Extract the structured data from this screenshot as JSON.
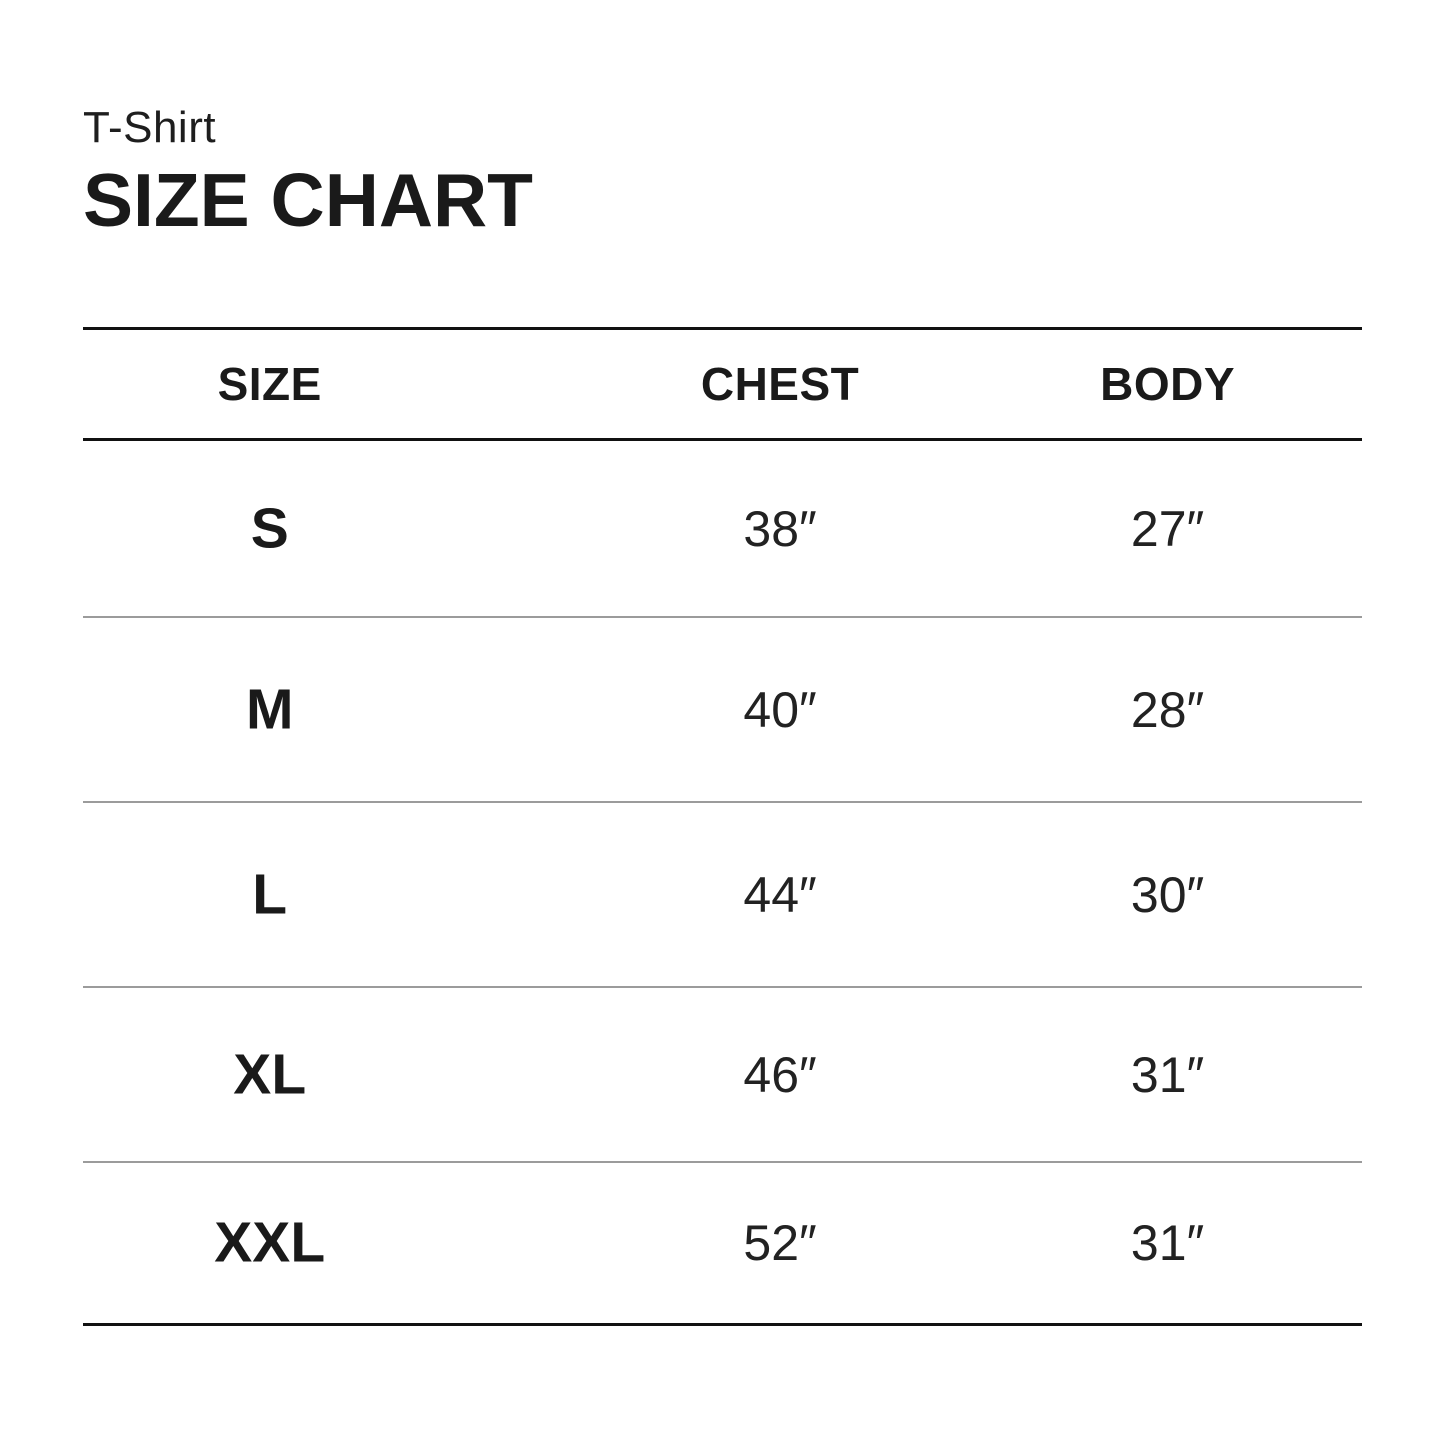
{
  "page": {
    "subtitle": "T-Shirt",
    "title": "SIZE CHART"
  },
  "table": {
    "columns": [
      "SIZE",
      "CHEST",
      "BODY"
    ],
    "rows": [
      {
        "size": "S",
        "chest": "38″",
        "body": "27″"
      },
      {
        "size": "M",
        "chest": "40″",
        "body": "28″"
      },
      {
        "size": "L",
        "chest": "44″",
        "body": "30″"
      },
      {
        "size": "XL",
        "chest": "46″",
        "body": "31″"
      },
      {
        "size": "XXL",
        "chest": "52″",
        "body": "31″"
      }
    ]
  },
  "colors": {
    "background": "#ffffff",
    "text": "#1d1d1d",
    "heavy_rule": "#111111",
    "light_rule": "#9b9b9b"
  }
}
